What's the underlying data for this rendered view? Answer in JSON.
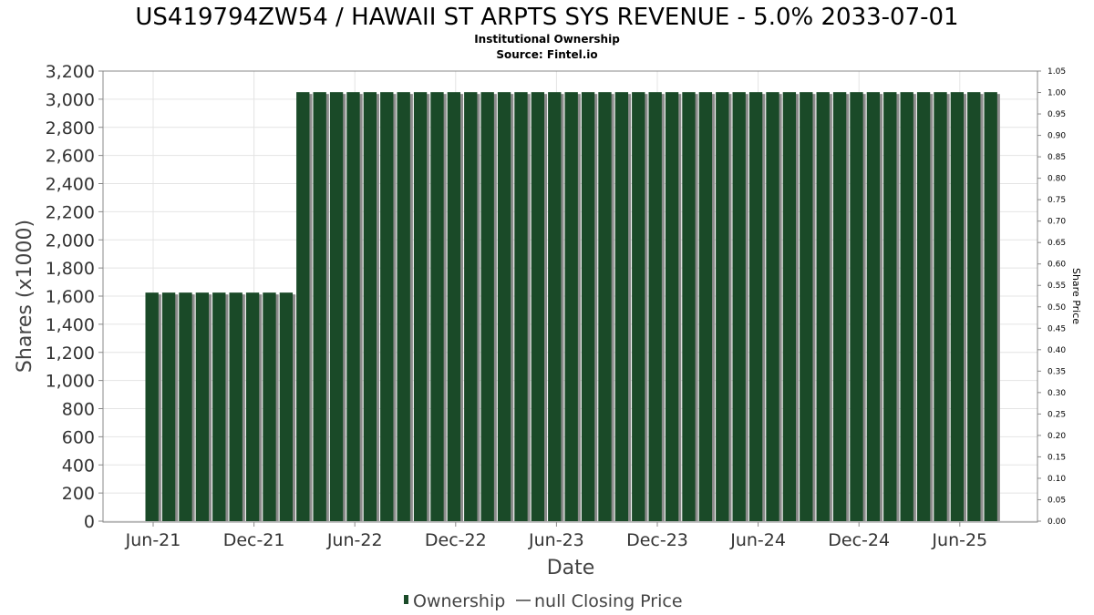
{
  "chart_data": {
    "type": "bar",
    "title": "US419794ZW54 / HAWAII ST ARPTS SYS REVENUE - 5.0% 2033-07-01",
    "subtitle_1": "Institutional Ownership",
    "subtitle_2": "Source: Fintel.io",
    "xlabel": "Date",
    "ylabel": "Shares (x1000)",
    "y2label": "Share Price",
    "ylim": [
      0,
      3200
    ],
    "y2lim": [
      0,
      1.05
    ],
    "yticks": [
      "0",
      "200",
      "400",
      "600",
      "800",
      "1,000",
      "1,200",
      "1,400",
      "1,600",
      "1,800",
      "2,000",
      "2,200",
      "2,400",
      "2,600",
      "2,800",
      "3,000",
      "3,200"
    ],
    "y2ticks": [
      "0.00",
      "0.05",
      "0.10",
      "0.15",
      "0.20",
      "0.25",
      "0.30",
      "0.35",
      "0.40",
      "0.45",
      "0.50",
      "0.55",
      "0.60",
      "0.65",
      "0.70",
      "0.75",
      "0.80",
      "0.85",
      "0.90",
      "0.95",
      "1.00",
      "1.05"
    ],
    "xticks": [
      "Jun-21",
      "Dec-21",
      "Jun-22",
      "Dec-22",
      "Jun-23",
      "Dec-23",
      "Jun-24",
      "Dec-24",
      "Jun-25"
    ],
    "grid": true,
    "legend_position": "bottom",
    "colors": {
      "bar": "#1a4a28",
      "bar_shadow": "#8c8c8c",
      "grid": "#e4e4e4"
    },
    "series": [
      {
        "name": "Ownership",
        "segments": [
          {
            "count": 9,
            "value": 1625
          },
          {
            "count": 42,
            "value": 3050
          }
        ]
      },
      {
        "name": "null Closing Price",
        "values": []
      }
    ]
  }
}
